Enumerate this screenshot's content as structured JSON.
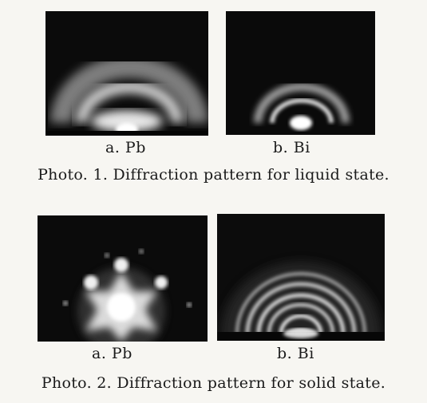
{
  "figure1": {
    "caption": "Photo. 1.  Diffraction pattern for liquid state.",
    "panels": [
      {
        "label": "a.  Pb"
      },
      {
        "label": "b.  Bi"
      }
    ]
  },
  "figure2": {
    "caption": "Photo. 2.  Diffraction pattern for solid state.",
    "panels": [
      {
        "label": "a.  Pb"
      },
      {
        "label": "b.  Bi"
      }
    ]
  }
}
